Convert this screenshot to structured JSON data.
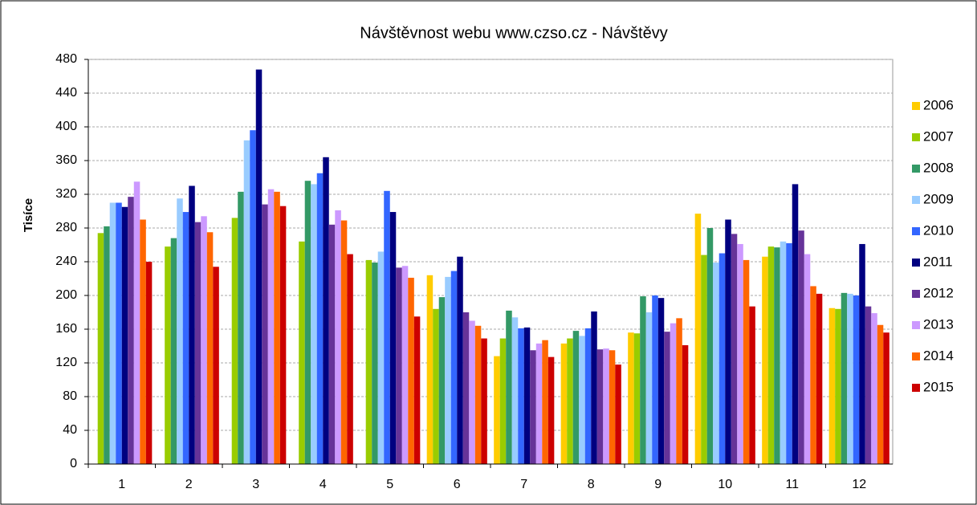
{
  "chart_data": {
    "type": "bar",
    "title": "Návštěvnost webu www.czso.cz - Návštěvy",
    "y_label": "Tisíce",
    "categories": [
      "1",
      "2",
      "3",
      "4",
      "5",
      "6",
      "7",
      "8",
      "9",
      "10",
      "11",
      "12"
    ],
    "series": [
      {
        "name": "2006",
        "color": "#FFCC00",
        "values": [
          null,
          null,
          null,
          null,
          null,
          224,
          128,
          143,
          156,
          297,
          246,
          185
        ]
      },
      {
        "name": "2007",
        "color": "#99CC00",
        "values": [
          274,
          258,
          292,
          264,
          242,
          184,
          149,
          149,
          155,
          248,
          258,
          184
        ]
      },
      {
        "name": "2008",
        "color": "#339966",
        "values": [
          282,
          268,
          323,
          336,
          239,
          198,
          182,
          158,
          199,
          280,
          257,
          203
        ]
      },
      {
        "name": "2009",
        "color": "#99CCFF",
        "values": [
          310,
          315,
          384,
          332,
          252,
          222,
          174,
          152,
          180,
          239,
          264,
          202
        ]
      },
      {
        "name": "2010",
        "color": "#3366FF",
        "values": [
          310,
          299,
          396,
          345,
          324,
          229,
          161,
          161,
          200,
          250,
          262,
          200
        ]
      },
      {
        "name": "2011",
        "color": "#000080",
        "values": [
          305,
          330,
          468,
          364,
          299,
          246,
          162,
          181,
          197,
          290,
          332,
          261
        ]
      },
      {
        "name": "2012",
        "color": "#663399",
        "values": [
          317,
          287,
          308,
          284,
          233,
          180,
          135,
          136,
          157,
          273,
          277,
          187
        ]
      },
      {
        "name": "2013",
        "color": "#CC99FF",
        "values": [
          335,
          294,
          326,
          301,
          235,
          170,
          143,
          137,
          167,
          261,
          249,
          179
        ]
      },
      {
        "name": "2014",
        "color": "#FF6600",
        "values": [
          290,
          275,
          323,
          289,
          221,
          164,
          147,
          135,
          173,
          242,
          211,
          165
        ]
      },
      {
        "name": "2015",
        "color": "#CC0000",
        "values": [
          240,
          234,
          306,
          249,
          175,
          149,
          127,
          118,
          141,
          187,
          202,
          156
        ]
      }
    ],
    "ylim": [
      0,
      480
    ],
    "yticks": [
      0,
      40,
      80,
      120,
      160,
      200,
      240,
      280,
      320,
      360,
      400,
      440,
      480
    ],
    "grid": true,
    "legend": "right"
  }
}
